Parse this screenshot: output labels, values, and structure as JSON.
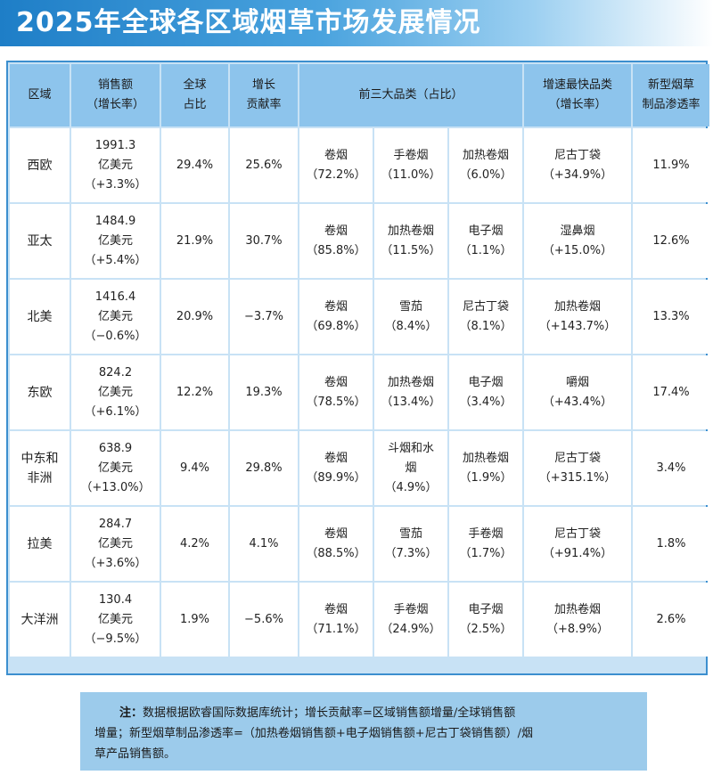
{
  "title": "2025年全球各区域烟草市场发展情况",
  "headers": [
    [
      "区域"
    ],
    [
      "销售额",
      "（增长率）"
    ],
    [
      "全球",
      "占比"
    ],
    [
      "增长",
      "贡献率"
    ],
    [
      "前三大品类（占比）"
    ],
    [
      "增速最快品类",
      "（增长率）"
    ],
    [
      "新型烟草",
      "制品渗透率"
    ]
  ],
  "rows": [
    {
      "region": [
        "西欧"
      ],
      "sales": [
        "1991.3",
        "亿美元",
        "（+3.3%）"
      ],
      "share": "29.4%",
      "contrib": "25.6%",
      "top": [
        [
          "卷烟",
          "（72.2%）"
        ],
        [
          "手卷烟",
          "（11.0%）"
        ],
        [
          "加热卷烟",
          "（6.0%）"
        ]
      ],
      "fastest": [
        "尼古丁袋",
        "（+34.9%）"
      ],
      "penetration": "11.9%"
    },
    {
      "region": [
        "亚太"
      ],
      "sales": [
        "1484.9",
        "亿美元",
        "（+5.4%）"
      ],
      "share": "21.9%",
      "contrib": "30.7%",
      "top": [
        [
          "卷烟",
          "（85.8%）"
        ],
        [
          "加热卷烟",
          "（11.5%）"
        ],
        [
          "电子烟",
          "（1.1%）"
        ]
      ],
      "fastest": [
        "湿鼻烟",
        "（+15.0%）"
      ],
      "penetration": "12.6%"
    },
    {
      "region": [
        "北美"
      ],
      "sales": [
        "1416.4",
        "亿美元",
        "（−0.6%）"
      ],
      "share": "20.9%",
      "contrib": "−3.7%",
      "top": [
        [
          "卷烟",
          "（69.8%）"
        ],
        [
          "雪茄",
          "（8.4%）"
        ],
        [
          "尼古丁袋",
          "（8.1%）"
        ]
      ],
      "fastest": [
        "加热卷烟",
        "（+143.7%）"
      ],
      "penetration": "13.3%"
    },
    {
      "region": [
        "东欧"
      ],
      "sales": [
        "824.2",
        "亿美元",
        "（+6.1%）"
      ],
      "share": "12.2%",
      "contrib": "19.3%",
      "top": [
        [
          "卷烟",
          "（78.5%）"
        ],
        [
          "加热卷烟",
          "（13.4%）"
        ],
        [
          "电子烟",
          "（3.4%）"
        ]
      ],
      "fastest": [
        "嚼烟",
        "（+43.4%）"
      ],
      "penetration": "17.4%"
    },
    {
      "region": [
        "中东和",
        "非洲"
      ],
      "sales": [
        "638.9",
        "亿美元",
        "（+13.0%）"
      ],
      "share": "9.4%",
      "contrib": "29.8%",
      "top": [
        [
          "卷烟",
          "（89.9%）"
        ],
        [
          "斗烟和水",
          "烟",
          "（4.9%）"
        ],
        [
          "加热卷烟",
          "（1.9%）"
        ]
      ],
      "fastest": [
        "尼古丁袋",
        "（+315.1%）"
      ],
      "penetration": "3.4%"
    },
    {
      "region": [
        "拉美"
      ],
      "sales": [
        "284.7",
        "亿美元",
        "（+3.6%）"
      ],
      "share": "4.2%",
      "contrib": "4.1%",
      "top": [
        [
          "卷烟",
          "（88.5%）"
        ],
        [
          "雪茄",
          "（7.3%）"
        ],
        [
          "手卷烟",
          "（1.7%）"
        ]
      ],
      "fastest": [
        "尼古丁袋",
        "（+91.4%）"
      ],
      "penetration": "1.8%"
    },
    {
      "region": [
        "大洋洲"
      ],
      "sales": [
        "130.4",
        "亿美元",
        "（−9.5%）"
      ],
      "share": "1.9%",
      "contrib": "−5.6%",
      "top": [
        [
          "卷烟",
          "（71.1%）"
        ],
        [
          "手卷烟",
          "（24.9%）"
        ],
        [
          "电子烟",
          "（2.5%）"
        ]
      ],
      "fastest": [
        "加热卷烟",
        "（+8.9%）"
      ],
      "penetration": "2.6%"
    }
  ],
  "note": {
    "label": "注：",
    "line1": "数据根据欧睿国际数据库统计；增长贡献率=区域销售额增量/全球销售额",
    "line2": "增量；新型烟草制品渗透率=（加热卷烟销售额+电子烟销售额+尼古丁袋销售额）/烟",
    "line3": "草产品销售额。"
  }
}
